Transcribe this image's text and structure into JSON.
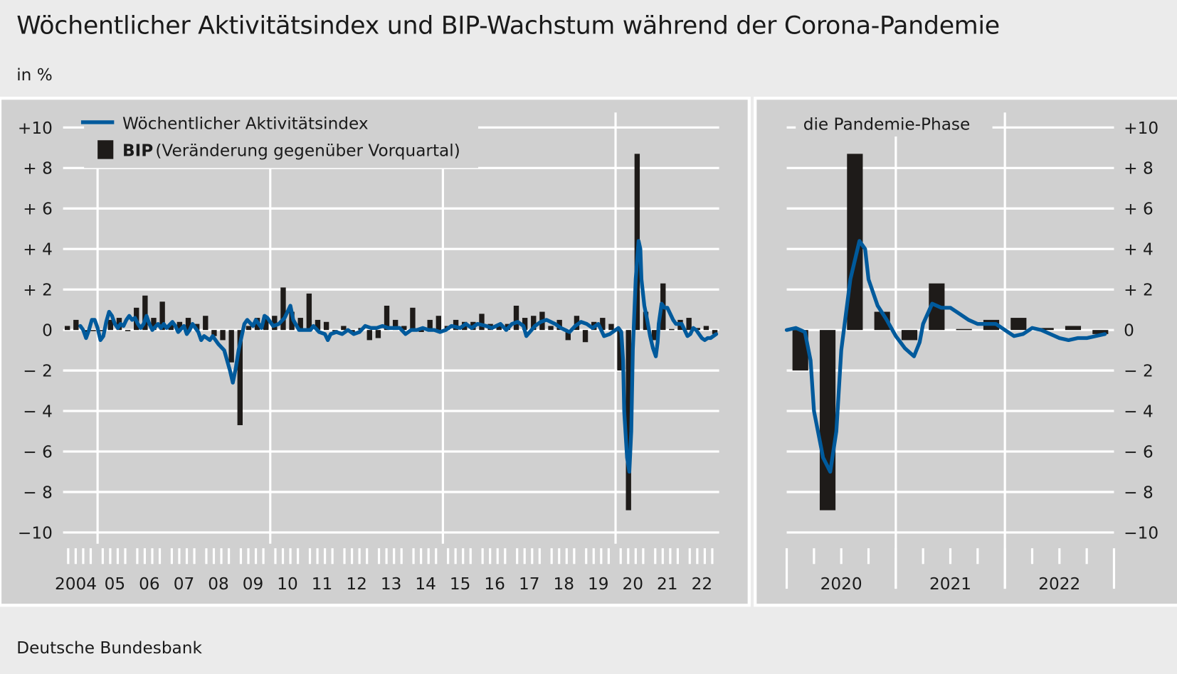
{
  "title": "Wöchentlicher Aktivitätsindex und BIP-Wachstum während der Corona-Pandemie",
  "unit": "in %",
  "footer": "Deutsche Bundesbank",
  "colors": {
    "line": "#005a9c",
    "bar": "#1e1b19",
    "panel": "#d0d0d0",
    "background": "#ebebeb",
    "grid": "#ffffff"
  },
  "chart_data": [
    {
      "type": "bar+line",
      "panel": "main",
      "legend_placement": "top-left",
      "legend": [
        {
          "label": "Wöchentlicher Aktivitätsindex",
          "kind": "line"
        },
        {
          "label_bold": "BIP",
          "label": "(Veränderung gegenüber Vorquartal)",
          "kind": "bar"
        }
      ],
      "ylim": [
        -10,
        10
      ],
      "yticks": [
        "+10",
        "+ 8",
        "+ 6",
        "+ 4",
        "+ 2",
        "0",
        "− 2",
        "− 4",
        "− 6",
        "− 8",
        "−10"
      ],
      "ytick_values": [
        10,
        8,
        6,
        4,
        2,
        0,
        -2,
        -4,
        -6,
        -8,
        -10
      ],
      "xlim": [
        "2004-01",
        "2022-12"
      ],
      "xtick_labels": [
        "2004",
        "05",
        "06",
        "07",
        "08",
        "09",
        "10",
        "11",
        "12",
        "13",
        "14",
        "15",
        "16",
        "17",
        "18",
        "19",
        "20",
        "21",
        "22"
      ],
      "grid": true
    },
    {
      "type": "bar+line",
      "panel": "pandemic",
      "title": "die Pandemie-Phase",
      "ylim": [
        -10,
        10
      ],
      "yticks": [
        "+10",
        "+ 8",
        "+ 6",
        "+ 4",
        "+ 2",
        "0",
        "− 2",
        "− 4",
        "− 6",
        "− 8",
        "−10"
      ],
      "ytick_values": [
        10,
        8,
        6,
        4,
        2,
        0,
        -2,
        -4,
        -6,
        -8,
        -10
      ],
      "xlim": [
        "2020-01",
        "2022-12"
      ],
      "xtick_labels": [
        "2020",
        "2021",
        "2022"
      ],
      "grid": true
    }
  ],
  "series": {
    "gdp_quarterly": {
      "start_year": 2004,
      "values": [
        0.2,
        0.5,
        -0.1,
        0.0,
        0.0,
        0.5,
        0.6,
        0.0,
        1.1,
        1.7,
        0.6,
        1.4,
        0.3,
        0.4,
        0.6,
        0.3,
        0.7,
        -0.3,
        -0.5,
        -1.6,
        -4.7,
        0.2,
        0.6,
        0.6,
        0.7,
        2.1,
        0.9,
        0.6,
        1.8,
        0.5,
        0.4,
        0.0,
        0.2,
        -0.1,
        0.1,
        -0.5,
        -0.4,
        1.2,
        0.5,
        0.2,
        1.1,
        -0.1,
        0.5,
        0.7,
        0.2,
        0.5,
        0.4,
        0.4,
        0.8,
        0.3,
        0.3,
        0.3,
        1.2,
        0.6,
        0.7,
        0.9,
        0.2,
        0.5,
        -0.5,
        0.7,
        -0.6,
        0.4,
        0.6,
        0.3,
        -2.0,
        -8.9,
        8.7,
        0.9,
        -0.5,
        2.3,
        0.05,
        0.5,
        0.6,
        0.1,
        0.2,
        -0.2
      ]
    },
    "activity_index": [
      [
        "2004-07",
        0.2
      ],
      [
        "2004-08",
        0.0
      ],
      [
        "2004-09",
        -0.4
      ],
      [
        "2004-10",
        0.0
      ],
      [
        "2004-11",
        0.5
      ],
      [
        "2004-12",
        0.5
      ],
      [
        "2005-01",
        0.1
      ],
      [
        "2005-02",
        -0.5
      ],
      [
        "2005-03",
        -0.3
      ],
      [
        "2005-04",
        0.4
      ],
      [
        "2005-05",
        0.9
      ],
      [
        "2005-06",
        0.7
      ],
      [
        "2005-07",
        0.3
      ],
      [
        "2005-08",
        0.1
      ],
      [
        "2005-09",
        0.3
      ],
      [
        "2005-10",
        0.2
      ],
      [
        "2005-11",
        0.5
      ],
      [
        "2005-12",
        0.7
      ],
      [
        "2006-01",
        0.5
      ],
      [
        "2006-02",
        0.6
      ],
      [
        "2006-03",
        0.3
      ],
      [
        "2006-04",
        0.1
      ],
      [
        "2006-05",
        0.3
      ],
      [
        "2006-06",
        0.7
      ],
      [
        "2006-07",
        0.3
      ],
      [
        "2006-08",
        0.0
      ],
      [
        "2006-10",
        0.3
      ],
      [
        "2006-11",
        0.1
      ],
      [
        "2006-12",
        0.3
      ],
      [
        "2007-01",
        0.1
      ],
      [
        "2007-03",
        0.4
      ],
      [
        "2007-04",
        0.2
      ],
      [
        "2007-05",
        -0.1
      ],
      [
        "2007-07",
        0.2
      ],
      [
        "2007-08",
        -0.2
      ],
      [
        "2007-09",
        0.0
      ],
      [
        "2007-10",
        0.3
      ],
      [
        "2007-12",
        -0.1
      ],
      [
        "2008-01",
        -0.5
      ],
      [
        "2008-02",
        -0.3
      ],
      [
        "2008-04",
        -0.5
      ],
      [
        "2008-05",
        -0.3
      ],
      [
        "2008-07",
        -0.7
      ],
      [
        "2008-09",
        -1.0
      ],
      [
        "2008-11",
        -2.0
      ],
      [
        "2008-12",
        -2.6
      ],
      [
        "2009-01",
        -1.9
      ],
      [
        "2009-02",
        -1.0
      ],
      [
        "2009-04",
        0.3
      ],
      [
        "2009-05",
        0.5
      ],
      [
        "2009-07",
        0.2
      ],
      [
        "2009-08",
        0.5
      ],
      [
        "2009-10",
        0.1
      ],
      [
        "2009-11",
        0.7
      ],
      [
        "2009-12",
        0.6
      ],
      [
        "2010-02",
        0.2
      ],
      [
        "2010-04",
        0.3
      ],
      [
        "2010-06",
        0.6
      ],
      [
        "2010-08",
        1.2
      ],
      [
        "2010-09",
        0.5
      ],
      [
        "2010-11",
        0.0
      ],
      [
        "2011-01",
        0.0
      ],
      [
        "2011-03",
        0.0
      ],
      [
        "2011-04",
        0.2
      ],
      [
        "2011-06",
        -0.1
      ],
      [
        "2011-08",
        -0.2
      ],
      [
        "2011-09",
        -0.5
      ],
      [
        "2011-10",
        -0.2
      ],
      [
        "2011-12",
        -0.1
      ],
      [
        "2012-02",
        -0.2
      ],
      [
        "2012-04",
        0.0
      ],
      [
        "2012-06",
        -0.2
      ],
      [
        "2012-08",
        -0.1
      ],
      [
        "2012-10",
        0.2
      ],
      [
        "2012-12",
        0.1
      ],
      [
        "2013-02",
        0.1
      ],
      [
        "2013-04",
        0.2
      ],
      [
        "2013-06",
        0.1
      ],
      [
        "2013-08",
        0.1
      ],
      [
        "2013-10",
        0.1
      ],
      [
        "2013-12",
        -0.2
      ],
      [
        "2014-02",
        0.0
      ],
      [
        "2014-04",
        0.0
      ],
      [
        "2014-06",
        0.1
      ],
      [
        "2014-08",
        0.0
      ],
      [
        "2014-10",
        0.0
      ],
      [
        "2014-12",
        -0.1
      ],
      [
        "2015-02",
        0.0
      ],
      [
        "2015-04",
        0.2
      ],
      [
        "2015-07",
        0.1
      ],
      [
        "2015-09",
        0.3
      ],
      [
        "2015-11",
        0.1
      ],
      [
        "2016-01",
        0.3
      ],
      [
        "2016-04",
        0.2
      ],
      [
        "2016-06",
        0.1
      ],
      [
        "2016-09",
        0.3
      ],
      [
        "2016-11",
        0.0
      ],
      [
        "2017-01",
        0.3
      ],
      [
        "2017-03",
        0.4
      ],
      [
        "2017-05",
        0.2
      ],
      [
        "2017-06",
        -0.3
      ],
      [
        "2017-09",
        0.2
      ],
      [
        "2017-11",
        0.4
      ],
      [
        "2018-01",
        0.5
      ],
      [
        "2018-04",
        0.3
      ],
      [
        "2018-06",
        0.1
      ],
      [
        "2018-09",
        -0.1
      ],
      [
        "2018-11",
        0.2
      ],
      [
        "2019-01",
        0.4
      ],
      [
        "2019-03",
        0.3
      ],
      [
        "2019-05",
        0.1
      ],
      [
        "2019-07",
        0.3
      ],
      [
        "2019-09",
        -0.3
      ],
      [
        "2019-11",
        -0.2
      ],
      [
        "2019-12",
        -0.1
      ],
      [
        "2020-01",
        0.0
      ],
      [
        "2020-02",
        0.1
      ],
      [
        "2020-03",
        -0.1
      ],
      [
        "2020-03-20",
        -1.5
      ],
      [
        "2020-04",
        -4.0
      ],
      [
        "2020-05",
        -6.3
      ],
      [
        "2020-05-25",
        -7.0
      ],
      [
        "2020-06-15",
        -5.0
      ],
      [
        "2020-07",
        -1.0
      ],
      [
        "2020-08",
        2.5
      ],
      [
        "2020-09",
        4.4
      ],
      [
        "2020-09-20",
        4.0
      ],
      [
        "2020-10",
        2.5
      ],
      [
        "2020-11",
        1.2
      ],
      [
        "2020-12",
        0.5
      ],
      [
        "2021-01",
        -0.3
      ],
      [
        "2021-02",
        -0.9
      ],
      [
        "2021-03",
        -1.3
      ],
      [
        "2021-03-20",
        -0.6
      ],
      [
        "2021-04",
        0.3
      ],
      [
        "2021-05",
        1.3
      ],
      [
        "2021-06",
        1.1
      ],
      [
        "2021-07",
        1.1
      ],
      [
        "2021-08",
        0.8
      ],
      [
        "2021-09",
        0.5
      ],
      [
        "2021-10",
        0.3
      ],
      [
        "2021-11",
        0.3
      ],
      [
        "2021-12",
        0.3
      ],
      [
        "2022-01",
        0.0
      ],
      [
        "2022-02",
        -0.3
      ],
      [
        "2022-03",
        -0.2
      ],
      [
        "2022-04",
        0.1
      ],
      [
        "2022-05",
        0.0
      ],
      [
        "2022-06",
        -0.2
      ],
      [
        "2022-07",
        -0.4
      ],
      [
        "2022-08",
        -0.5
      ],
      [
        "2022-09",
        -0.4
      ],
      [
        "2022-10",
        -0.4
      ],
      [
        "2022-11",
        -0.3
      ],
      [
        "2022-12",
        -0.2
      ]
    ]
  }
}
